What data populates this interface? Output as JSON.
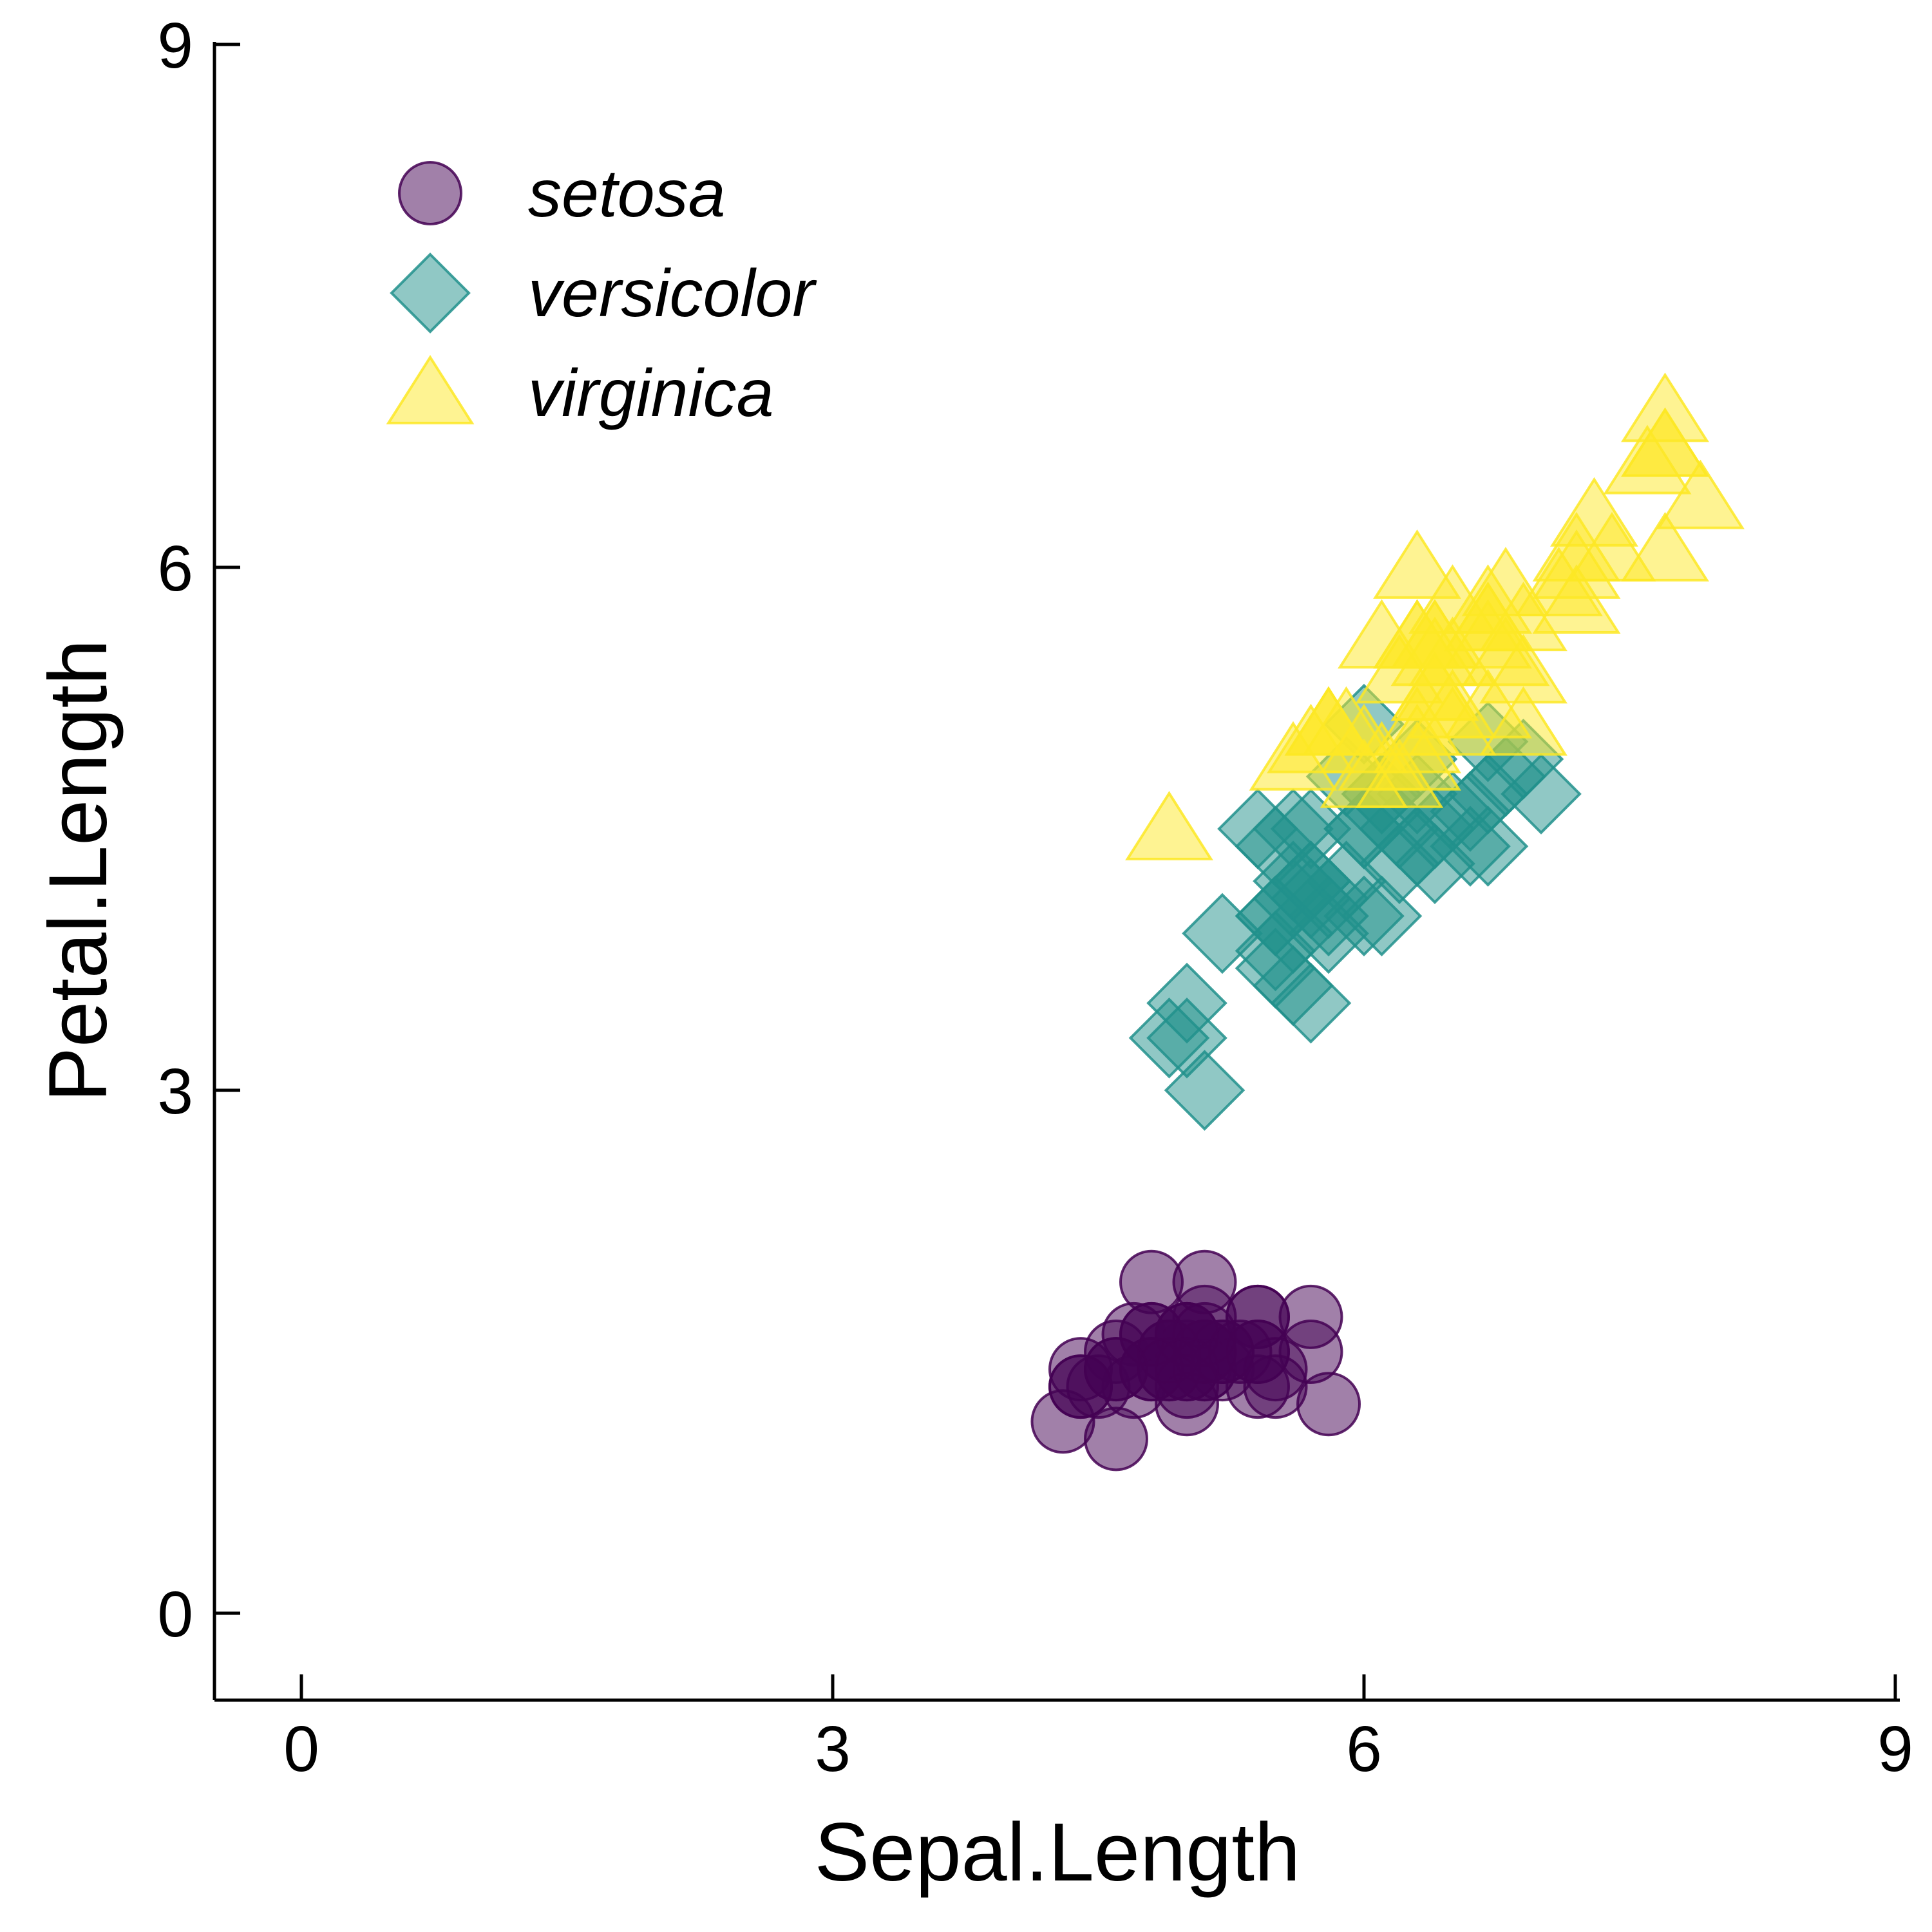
{
  "chart_data": {
    "type": "scatter",
    "xlabel": "Sepal.Length",
    "ylabel": "Petal.Length",
    "xlim": [
      -0.5,
      9
    ],
    "ylim": [
      -0.5,
      9
    ],
    "xticks": [
      0,
      3,
      6,
      9
    ],
    "yticks": [
      0,
      3,
      6,
      9
    ],
    "grid": false,
    "legend_position": "top-left",
    "series": [
      {
        "name": "setosa",
        "marker": "circle",
        "color": "#440154",
        "points": [
          [
            5.1,
            1.4
          ],
          [
            4.9,
            1.4
          ],
          [
            4.7,
            1.3
          ],
          [
            4.6,
            1.5
          ],
          [
            5.0,
            1.4
          ],
          [
            5.4,
            1.7
          ],
          [
            4.6,
            1.4
          ],
          [
            5.0,
            1.5
          ],
          [
            4.4,
            1.4
          ],
          [
            4.9,
            1.5
          ],
          [
            5.4,
            1.5
          ],
          [
            4.8,
            1.6
          ],
          [
            4.8,
            1.4
          ],
          [
            4.3,
            1.1
          ],
          [
            5.8,
            1.2
          ],
          [
            5.7,
            1.5
          ],
          [
            5.4,
            1.3
          ],
          [
            5.1,
            1.4
          ],
          [
            5.7,
            1.7
          ],
          [
            5.1,
            1.5
          ],
          [
            5.4,
            1.7
          ],
          [
            5.1,
            1.5
          ],
          [
            4.6,
            1.0
          ],
          [
            5.1,
            1.7
          ],
          [
            4.8,
            1.9
          ],
          [
            5.0,
            1.6
          ],
          [
            5.0,
            1.6
          ],
          [
            5.2,
            1.5
          ],
          [
            5.2,
            1.4
          ],
          [
            4.7,
            1.6
          ],
          [
            4.8,
            1.6
          ],
          [
            5.4,
            1.5
          ],
          [
            5.2,
            1.5
          ],
          [
            5.5,
            1.4
          ],
          [
            4.9,
            1.5
          ],
          [
            5.0,
            1.2
          ],
          [
            5.5,
            1.3
          ],
          [
            4.9,
            1.4
          ],
          [
            4.4,
            1.3
          ],
          [
            5.1,
            1.5
          ],
          [
            5.0,
            1.3
          ],
          [
            4.5,
            1.3
          ],
          [
            4.4,
            1.3
          ],
          [
            5.0,
            1.6
          ],
          [
            5.1,
            1.9
          ],
          [
            4.8,
            1.4
          ],
          [
            5.1,
            1.6
          ],
          [
            4.6,
            1.4
          ],
          [
            5.3,
            1.5
          ],
          [
            5.0,
            1.4
          ]
        ]
      },
      {
        "name": "versicolor",
        "marker": "diamond",
        "color": "#21918c",
        "points": [
          [
            7.0,
            4.7
          ],
          [
            6.4,
            4.5
          ],
          [
            6.9,
            4.9
          ],
          [
            5.5,
            4.0
          ],
          [
            6.5,
            4.6
          ],
          [
            5.7,
            4.5
          ],
          [
            6.3,
            4.7
          ],
          [
            4.9,
            3.3
          ],
          [
            6.6,
            4.6
          ],
          [
            5.2,
            3.9
          ],
          [
            5.0,
            3.5
          ],
          [
            5.9,
            4.2
          ],
          [
            6.0,
            4.0
          ],
          [
            6.1,
            4.7
          ],
          [
            5.6,
            3.6
          ],
          [
            6.7,
            4.4
          ],
          [
            5.6,
            4.5
          ],
          [
            5.8,
            4.1
          ],
          [
            6.2,
            4.5
          ],
          [
            5.6,
            3.9
          ],
          [
            5.9,
            4.8
          ],
          [
            6.1,
            4.0
          ],
          [
            6.3,
            4.9
          ],
          [
            6.1,
            4.7
          ],
          [
            6.4,
            4.3
          ],
          [
            6.6,
            4.4
          ],
          [
            6.8,
            4.8
          ],
          [
            6.7,
            5.0
          ],
          [
            6.0,
            4.5
          ],
          [
            5.7,
            3.5
          ],
          [
            5.5,
            3.8
          ],
          [
            5.5,
            3.7
          ],
          [
            5.8,
            3.9
          ],
          [
            6.0,
            5.1
          ],
          [
            5.4,
            4.5
          ],
          [
            6.0,
            4.5
          ],
          [
            6.7,
            4.7
          ],
          [
            6.3,
            4.4
          ],
          [
            5.6,
            4.1
          ],
          [
            5.5,
            4.0
          ],
          [
            5.5,
            4.4
          ],
          [
            6.1,
            4.6
          ],
          [
            5.8,
            4.0
          ],
          [
            5.0,
            3.3
          ],
          [
            5.6,
            4.2
          ],
          [
            5.7,
            4.2
          ],
          [
            5.7,
            4.2
          ],
          [
            6.2,
            4.3
          ],
          [
            5.1,
            3.0
          ],
          [
            5.7,
            4.1
          ]
        ]
      },
      {
        "name": "virginica",
        "marker": "triangle",
        "color": "#fde725",
        "points": [
          [
            6.3,
            6.0
          ],
          [
            5.8,
            5.1
          ],
          [
            7.1,
            5.9
          ],
          [
            6.3,
            5.6
          ],
          [
            6.5,
            5.8
          ],
          [
            7.6,
            6.6
          ],
          [
            4.9,
            4.5
          ],
          [
            7.3,
            6.3
          ],
          [
            6.7,
            5.8
          ],
          [
            7.2,
            6.1
          ],
          [
            6.5,
            5.1
          ],
          [
            6.4,
            5.3
          ],
          [
            6.8,
            5.5
          ],
          [
            5.7,
            5.0
          ],
          [
            5.8,
            5.1
          ],
          [
            6.4,
            5.3
          ],
          [
            6.5,
            5.5
          ],
          [
            7.7,
            6.7
          ],
          [
            7.7,
            6.9
          ],
          [
            6.0,
            5.0
          ],
          [
            6.9,
            5.7
          ],
          [
            5.6,
            4.9
          ],
          [
            7.7,
            6.7
          ],
          [
            6.3,
            4.9
          ],
          [
            6.7,
            5.7
          ],
          [
            7.2,
            6.0
          ],
          [
            6.2,
            4.8
          ],
          [
            6.1,
            4.9
          ],
          [
            6.4,
            5.6
          ],
          [
            7.2,
            5.8
          ],
          [
            7.4,
            6.1
          ],
          [
            7.9,
            6.4
          ],
          [
            6.4,
            5.6
          ],
          [
            6.3,
            5.1
          ],
          [
            6.1,
            5.6
          ],
          [
            7.7,
            6.1
          ],
          [
            6.3,
            5.6
          ],
          [
            6.4,
            5.5
          ],
          [
            6.0,
            4.8
          ],
          [
            6.9,
            5.4
          ],
          [
            6.7,
            5.6
          ],
          [
            6.9,
            5.1
          ],
          [
            5.8,
            5.1
          ],
          [
            6.8,
            5.9
          ],
          [
            6.7,
            5.7
          ],
          [
            6.7,
            5.2
          ],
          [
            6.3,
            5.0
          ],
          [
            6.5,
            5.2
          ],
          [
            6.2,
            5.4
          ],
          [
            5.9,
            5.1
          ]
        ]
      }
    ]
  }
}
